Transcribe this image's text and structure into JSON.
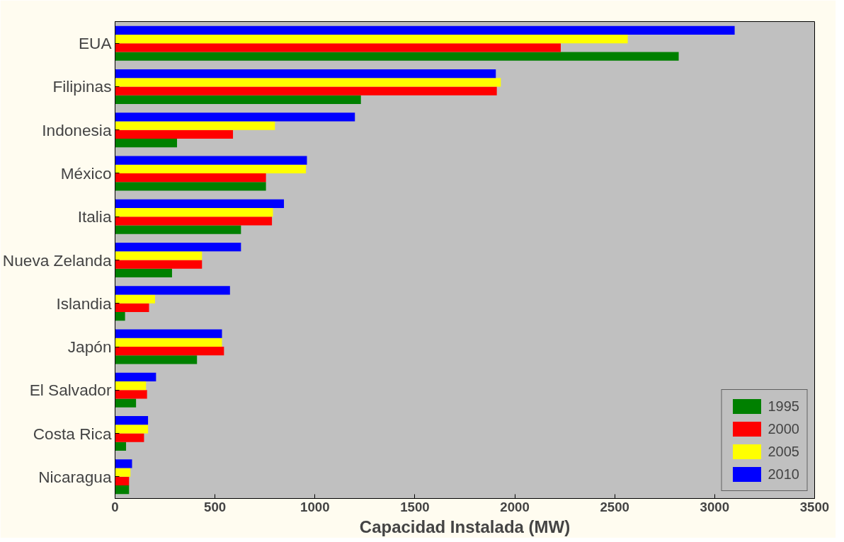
{
  "chart_data": {
    "type": "bar",
    "orientation": "horizontal",
    "xlabel": "Capacidad Instalada (MW)",
    "categories": [
      "EUA",
      "Filipinas",
      "Indonesia",
      "México",
      "Italia",
      "Nueva Zelanda",
      "Islandia",
      "Japón",
      "El Salvador",
      "Costa Rica",
      "Nicaragua"
    ],
    "series": [
      {
        "name": "1995",
        "color": "#008000",
        "values": [
          2820,
          1230,
          310,
          755,
          630,
          285,
          50,
          410,
          105,
          55,
          70
        ]
      },
      {
        "name": "2000",
        "color": "#ff0000",
        "values": [
          2230,
          1910,
          590,
          755,
          785,
          435,
          170,
          545,
          160,
          145,
          70
        ]
      },
      {
        "name": "2005",
        "color": "#ffff00",
        "values": [
          2565,
          1930,
          800,
          955,
          790,
          435,
          200,
          535,
          155,
          165,
          77
        ]
      },
      {
        "name": "2010",
        "color": "#0000ff",
        "values": [
          3100,
          1905,
          1200,
          960,
          845,
          630,
          575,
          535,
          205,
          165,
          85
        ]
      }
    ],
    "xlim": [
      0,
      3500
    ],
    "xticks": [
      0,
      500,
      1000,
      1500,
      2000,
      2500,
      3000,
      3500
    ],
    "grid": false,
    "legend": "bottom right"
  }
}
